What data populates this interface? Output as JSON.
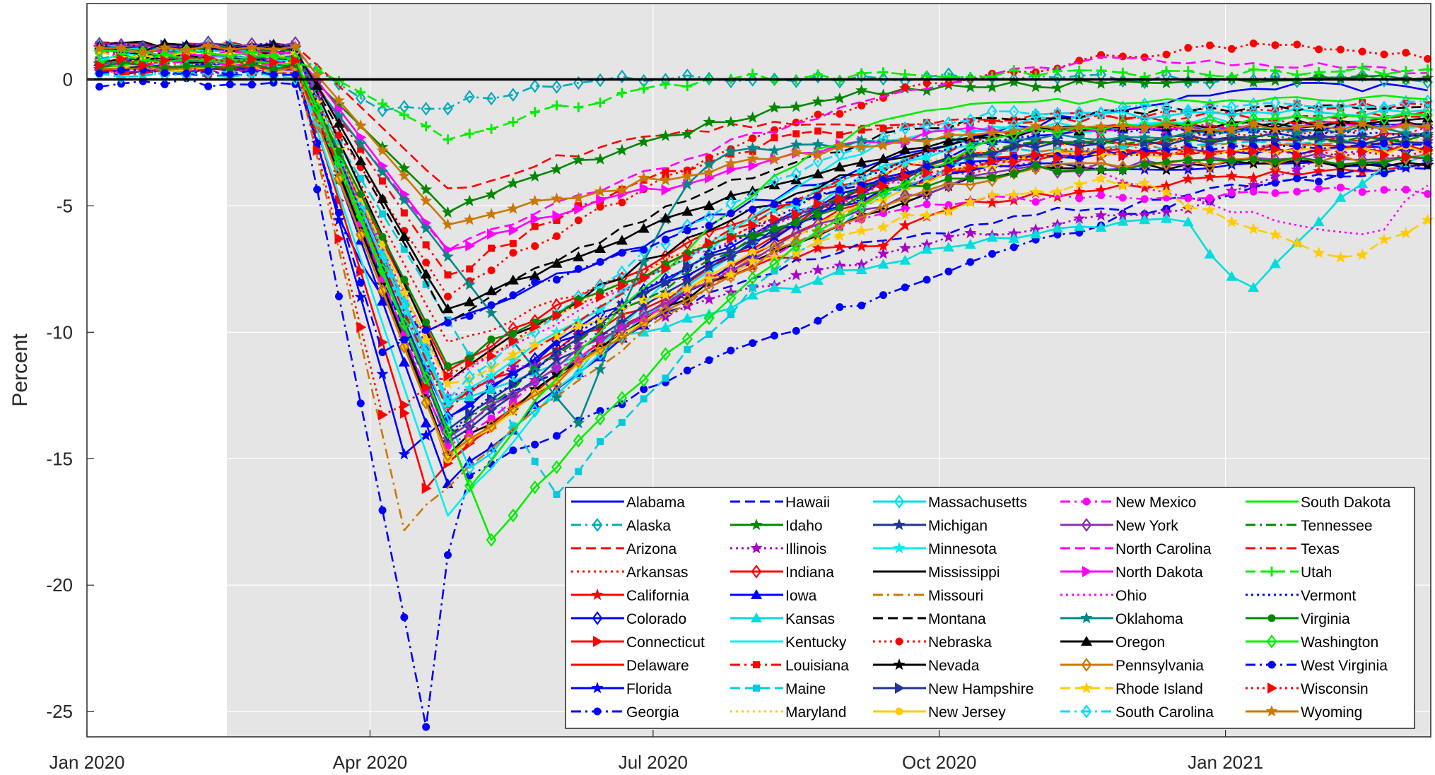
{
  "chart_data": {
    "type": "line",
    "title": "",
    "xlabel": "",
    "ylabel": "Percent",
    "xlim": [
      "2020-01-01",
      "2021-03-08"
    ],
    "ylim": [
      -26,
      3
    ],
    "x_ticks": [
      "2020-01-01",
      "2020-04-01",
      "2020-07-01",
      "2020-10-01",
      "2021-01-01"
    ],
    "x_tick_labels": [
      "Jan 2020",
      "Apr 2020",
      "Jul 2020",
      "Oct 2020",
      "Jan 2021"
    ],
    "y_ticks": [
      0,
      -5,
      -10,
      -15,
      -20,
      -25
    ],
    "y_tick_labels": [
      "0",
      "-5",
      "-10",
      "-15",
      "-20",
      "-25"
    ],
    "grid": true,
    "shaded_region": [
      "2020-02-15",
      "2021-03-08"
    ],
    "reference_line": 0,
    "legend_position": "bottom-right",
    "colors": {
      "shade": "#e5e5e5",
      "grid": "#ffffff",
      "axis": "#262626",
      "zero_line": "#000000"
    },
    "series": [
      {
        "name": "Alabama",
        "color": "#0000ff",
        "dash": "solid",
        "marker": "none",
        "shape": [
          [
            -5.5,
            "03-22"
          ],
          [
            -10,
            "04-19"
          ],
          [
            -0.3,
            "01-27"
          ]
        ]
      },
      {
        "name": "Alaska",
        "color": "#00aabb",
        "dash": "dashdot",
        "marker": "diamond",
        "shape": [
          [
            -1.3,
            "04-05"
          ],
          [
            -1.0,
            "04-26"
          ],
          [
            0.1,
            "07-12"
          ],
          [
            0.0,
            "03-08"
          ]
        ]
      },
      {
        "name": "Arizona",
        "color": "#ff0000",
        "dash": "dash",
        "marker": "none",
        "shape": [
          [
            -4.4,
            "04-26"
          ],
          [
            -1.8,
            "08-09"
          ],
          [
            -1.4,
            "03-08"
          ]
        ]
      },
      {
        "name": "Arkansas",
        "color": "#ff0000",
        "dash": "dot",
        "marker": "none",
        "shape": [
          [
            -10.5,
            "04-26"
          ],
          [
            -2.2,
            "01-03"
          ],
          [
            -2.0,
            "03-08"
          ]
        ]
      },
      {
        "name": "California",
        "color": "#ff0000",
        "dash": "solid",
        "marker": "star",
        "shape": [
          [
            -13.0,
            "04-26"
          ],
          [
            -6.5,
            "09-13"
          ],
          [
            -5.0,
            "10-04"
          ],
          [
            -3.5,
            "03-08"
          ]
        ]
      },
      {
        "name": "Colorado",
        "color": "#0000ff",
        "dash": "solid",
        "marker": "diamond",
        "shape": [
          [
            -13.5,
            "04-26"
          ],
          [
            -3.0,
            "10-25"
          ],
          [
            -2.8,
            "03-08"
          ]
        ]
      },
      {
        "name": "Connecticut",
        "color": "#ff0000",
        "dash": "solid",
        "marker": "triangle-right",
        "shape": [
          [
            -16.0,
            "04-19"
          ],
          [
            -3.0,
            "10-25"
          ],
          [
            -2.7,
            "03-08"
          ]
        ]
      },
      {
        "name": "Delaware",
        "color": "#ff0000",
        "dash": "solid",
        "marker": "none",
        "shape": [
          [
            -15.0,
            "04-26"
          ],
          [
            -3.0,
            "11-08"
          ],
          [
            -2.6,
            "03-08"
          ]
        ]
      },
      {
        "name": "Florida",
        "color": "#0000ff",
        "dash": "solid",
        "marker": "star",
        "shape": [
          [
            -14.7,
            "04-12"
          ],
          [
            -3.5,
            "10-25"
          ],
          [
            -3.4,
            "03-08"
          ]
        ]
      },
      {
        "name": "Georgia",
        "color": "#0000ff",
        "dash": "dashdot",
        "marker": "circle",
        "shape": [
          [
            -25.5,
            "04-19"
          ],
          [
            -15.7,
            "05-03"
          ],
          [
            -3.5,
            "03-08"
          ]
        ]
      },
      {
        "name": "Hawaii",
        "color": "#0000ff",
        "dash": "dash",
        "marker": "none",
        "shape": [
          [
            -14.0,
            "04-26"
          ],
          [
            -6.1,
            "10-04"
          ],
          [
            -5.0,
            "11-29"
          ],
          [
            -3.6,
            "03-08"
          ]
        ]
      },
      {
        "name": "Idaho",
        "color": "#008800",
        "dash": "solid",
        "marker": "star",
        "shape": [
          [
            -5.2,
            "04-26"
          ],
          [
            -0.3,
            "10-04"
          ],
          [
            0.0,
            "03-08"
          ]
        ]
      },
      {
        "name": "Illinois",
        "color": "#aa00cc",
        "dash": "dot",
        "marker": "star",
        "shape": [
          [
            -12.5,
            "04-26"
          ],
          [
            -5.2,
            "12-20"
          ],
          [
            -2.5,
            "03-08"
          ]
        ]
      },
      {
        "name": "Indiana",
        "color": "#ff0000",
        "dash": "solid",
        "marker": "diamond",
        "shape": [
          [
            -11.5,
            "04-26"
          ],
          [
            -2.5,
            "11-08"
          ],
          [
            -2.3,
            "03-08"
          ]
        ]
      },
      {
        "name": "Iowa",
        "color": "#0000ff",
        "dash": "solid",
        "marker": "triangle",
        "shape": [
          [
            -16.0,
            "04-26"
          ],
          [
            -2.2,
            "11-08"
          ],
          [
            -1.8,
            "03-08"
          ]
        ]
      },
      {
        "name": "Kansas",
        "color": "#00dddd",
        "dash": "solid",
        "marker": "triangle",
        "shape": [
          [
            -12.8,
            "04-26"
          ],
          [
            -5.5,
            "12-20"
          ],
          [
            -8.2,
            "01-10"
          ],
          [
            -3.0,
            "03-08"
          ]
        ]
      },
      {
        "name": "Kentucky",
        "color": "#00eeee",
        "dash": "solid",
        "marker": "none",
        "shape": [
          [
            -17.3,
            "04-26"
          ],
          [
            -2.0,
            "10-04"
          ],
          [
            -1.5,
            "03-08"
          ]
        ]
      },
      {
        "name": "Louisiana",
        "color": "#ff0000",
        "dash": "dashdot",
        "marker": "square",
        "shape": [
          [
            -7.8,
            "04-26"
          ],
          [
            -2.0,
            "09-06"
          ],
          [
            -1.0,
            "03-08"
          ]
        ]
      },
      {
        "name": "Maine",
        "color": "#00ccdd",
        "dash": "dash",
        "marker": "square",
        "shape": [
          [
            -16.5,
            "05-31"
          ],
          [
            -2.8,
            "10-25"
          ],
          [
            -2.5,
            "03-08"
          ]
        ]
      },
      {
        "name": "Maryland",
        "color": "#ffcc00",
        "dash": "dot",
        "marker": "none",
        "shape": [
          [
            -12.0,
            "04-26"
          ],
          [
            -2.5,
            "11-08"
          ],
          [
            -2.3,
            "03-08"
          ]
        ]
      },
      {
        "name": "Massachusetts",
        "color": "#00ddee",
        "dash": "solid",
        "marker": "diamond",
        "shape": [
          [
            -15.5,
            "05-03"
          ],
          [
            -1.5,
            "11-08"
          ],
          [
            -1.3,
            "03-08"
          ]
        ]
      },
      {
        "name": "Michigan",
        "color": "#223399",
        "dash": "solid",
        "marker": "star",
        "shape": [
          [
            -14.5,
            "04-26"
          ],
          [
            -2.5,
            "11-08"
          ],
          [
            -2.2,
            "03-08"
          ]
        ]
      },
      {
        "name": "Minnesota",
        "color": "#00eeee",
        "dash": "solid",
        "marker": "star",
        "shape": [
          [
            -13.0,
            "04-26"
          ],
          [
            -2.0,
            "11-08"
          ],
          [
            -1.8,
            "03-08"
          ]
        ]
      },
      {
        "name": "Mississippi",
        "color": "#000000",
        "dash": "solid",
        "marker": "none",
        "shape": [
          [
            -11.8,
            "04-26"
          ],
          [
            -2.0,
            "11-08"
          ],
          [
            -1.8,
            "03-08"
          ]
        ]
      },
      {
        "name": "Missouri",
        "color": "#cc7700",
        "dash": "dashdot",
        "marker": "none",
        "shape": [
          [
            -17.7,
            "04-12"
          ],
          [
            -2.8,
            "11-08"
          ],
          [
            -2.5,
            "03-08"
          ]
        ]
      },
      {
        "name": "Montana",
        "color": "#000000",
        "dash": "dash",
        "marker": "none",
        "shape": [
          [
            -9.5,
            "04-26"
          ],
          [
            -1.5,
            "10-25"
          ],
          [
            -1.0,
            "03-08"
          ]
        ]
      },
      {
        "name": "Nebraska",
        "color": "#ff0000",
        "dash": "dot",
        "marker": "circle",
        "shape": [
          [
            -8.5,
            "04-26"
          ],
          [
            0.5,
            "11-08"
          ],
          [
            1.4,
            "01-10"
          ],
          [
            0.9,
            "03-08"
          ]
        ]
      },
      {
        "name": "Nevada",
        "color": "#000000",
        "dash": "solid",
        "marker": "star",
        "shape": [
          [
            -14.8,
            "04-26"
          ],
          [
            -3.5,
            "11-08"
          ],
          [
            -3.3,
            "03-08"
          ]
        ]
      },
      {
        "name": "New Hampshire",
        "color": "#223399",
        "dash": "solid",
        "marker": "triangle-right",
        "shape": [
          [
            -13.8,
            "04-26"
          ],
          [
            -2.5,
            "11-08"
          ],
          [
            -2.4,
            "03-08"
          ]
        ]
      },
      {
        "name": "New Jersey",
        "color": "#ffcc00",
        "dash": "solid",
        "marker": "circle",
        "shape": [
          [
            -15.0,
            "04-26"
          ],
          [
            -3.0,
            "11-08"
          ],
          [
            -2.8,
            "03-08"
          ]
        ]
      },
      {
        "name": "New Mexico",
        "color": "#ff00ff",
        "dash": "dashdot",
        "marker": "circle",
        "shape": [
          [
            -14.5,
            "04-26"
          ],
          [
            -4.8,
            "10-11"
          ],
          [
            -4.4,
            "03-08"
          ]
        ]
      },
      {
        "name": "New York",
        "color": "#8833aa",
        "dash": "solid",
        "marker": "diamond",
        "shape": [
          [
            -14.2,
            "04-26"
          ],
          [
            -3.5,
            "11-08"
          ],
          [
            -3.0,
            "03-08"
          ]
        ]
      },
      {
        "name": "North Carolina",
        "color": "#ff00ff",
        "dash": "dash",
        "marker": "none",
        "shape": [
          [
            -6.8,
            "04-26"
          ],
          [
            0.8,
            "12-06"
          ],
          [
            0.4,
            "03-08"
          ]
        ]
      },
      {
        "name": "North Dakota",
        "color": "#ff00ff",
        "dash": "solid",
        "marker": "triangle-right",
        "shape": [
          [
            -6.8,
            "04-26"
          ],
          [
            -2.0,
            "10-25"
          ],
          [
            -1.8,
            "03-08"
          ]
        ]
      },
      {
        "name": "Ohio",
        "color": "#ff00ff",
        "dash": "dot",
        "marker": "none",
        "shape": [
          [
            -12.0,
            "04-26"
          ],
          [
            -3.0,
            "11-08"
          ],
          [
            -6.0,
            "02-21"
          ],
          [
            -4.0,
            "03-08"
          ]
        ]
      },
      {
        "name": "Oklahoma",
        "color": "#008888",
        "dash": "solid",
        "marker": "star",
        "shape": [
          [
            -13.7,
            "06-07"
          ],
          [
            -2.8,
            "07-26"
          ],
          [
            -2.0,
            "03-08"
          ]
        ]
      },
      {
        "name": "Oregon",
        "color": "#000000",
        "dash": "solid",
        "marker": "triangle",
        "shape": [
          [
            -9.2,
            "04-26"
          ],
          [
            -2.0,
            "11-08"
          ],
          [
            -1.7,
            "03-08"
          ]
        ]
      },
      {
        "name": "Pennsylvania",
        "color": "#cc7700",
        "dash": "solid",
        "marker": "diamond",
        "shape": [
          [
            -15.0,
            "04-26"
          ],
          [
            -3.5,
            "11-08"
          ],
          [
            -3.1,
            "03-08"
          ]
        ]
      },
      {
        "name": "Rhode Island",
        "color": "#ffcc00",
        "dash": "dash",
        "marker": "star",
        "shape": [
          [
            -12.2,
            "04-26"
          ],
          [
            -4.0,
            "12-06"
          ],
          [
            -7.0,
            "02-14"
          ],
          [
            -5.7,
            "03-08"
          ]
        ]
      },
      {
        "name": "South Carolina",
        "color": "#00ddff",
        "dash": "dashdot",
        "marker": "diamond",
        "shape": [
          [
            -12.5,
            "04-26"
          ],
          [
            -1.3,
            "10-25"
          ],
          [
            -1.0,
            "03-08"
          ]
        ]
      },
      {
        "name": "South Dakota",
        "color": "#00ee00",
        "dash": "solid",
        "marker": "none",
        "shape": [
          [
            -16.0,
            "05-03"
          ],
          [
            -1.0,
            "10-04"
          ],
          [
            -0.8,
            "03-08"
          ]
        ]
      },
      {
        "name": "Tennessee",
        "color": "#008800",
        "dash": "dashdot",
        "marker": "none",
        "shape": [
          [
            -14.0,
            "04-26"
          ],
          [
            -2.5,
            "11-08"
          ],
          [
            -2.3,
            "03-08"
          ]
        ]
      },
      {
        "name": "Texas",
        "color": "#ff0000",
        "dash": "dashdot",
        "marker": "none",
        "shape": [
          [
            -13.0,
            "04-26"
          ],
          [
            -2.0,
            "11-08"
          ],
          [
            -1.6,
            "03-08"
          ]
        ]
      },
      {
        "name": "Utah",
        "color": "#00ee00",
        "dash": "dash",
        "marker": "plus",
        "shape": [
          [
            -2.3,
            "04-26"
          ],
          [
            0.1,
            "08-09"
          ],
          [
            0.3,
            "03-08"
          ]
        ]
      },
      {
        "name": "Vermont",
        "color": "#0000ff",
        "dash": "dot",
        "marker": "none",
        "shape": [
          [
            -14.0,
            "04-26"
          ],
          [
            -2.0,
            "11-08"
          ],
          [
            -2.2,
            "03-08"
          ]
        ]
      },
      {
        "name": "Virginia",
        "color": "#008800",
        "dash": "solid",
        "marker": "circle",
        "shape": [
          [
            -11.3,
            "04-26"
          ],
          [
            -3.5,
            "11-08"
          ],
          [
            -3.2,
            "03-08"
          ]
        ]
      },
      {
        "name": "Washington",
        "color": "#00ee00",
        "dash": "solid",
        "marker": "diamond",
        "shape": [
          [
            -18.2,
            "05-10"
          ],
          [
            -2.0,
            "11-08"
          ],
          [
            -1.5,
            "03-08"
          ]
        ]
      },
      {
        "name": "West Virginia",
        "color": "#0000ff",
        "dash": "dashdot",
        "marker": "circle",
        "shape": [
          [
            -10.8,
            "04-05"
          ],
          [
            -3.0,
            "11-08"
          ],
          [
            -2.6,
            "03-08"
          ]
        ]
      },
      {
        "name": "Wisconsin",
        "color": "#ff0000",
        "dash": "dot",
        "marker": "triangle-right",
        "shape": [
          [
            -13.3,
            "04-05"
          ],
          [
            -3.0,
            "11-08"
          ],
          [
            -2.9,
            "03-08"
          ]
        ]
      },
      {
        "name": "Wyoming",
        "color": "#cc7700",
        "dash": "solid",
        "marker": "star",
        "shape": [
          [
            -5.8,
            "04-26"
          ],
          [
            -2.0,
            "11-08"
          ],
          [
            -1.9,
            "03-08"
          ]
        ]
      }
    ]
  }
}
